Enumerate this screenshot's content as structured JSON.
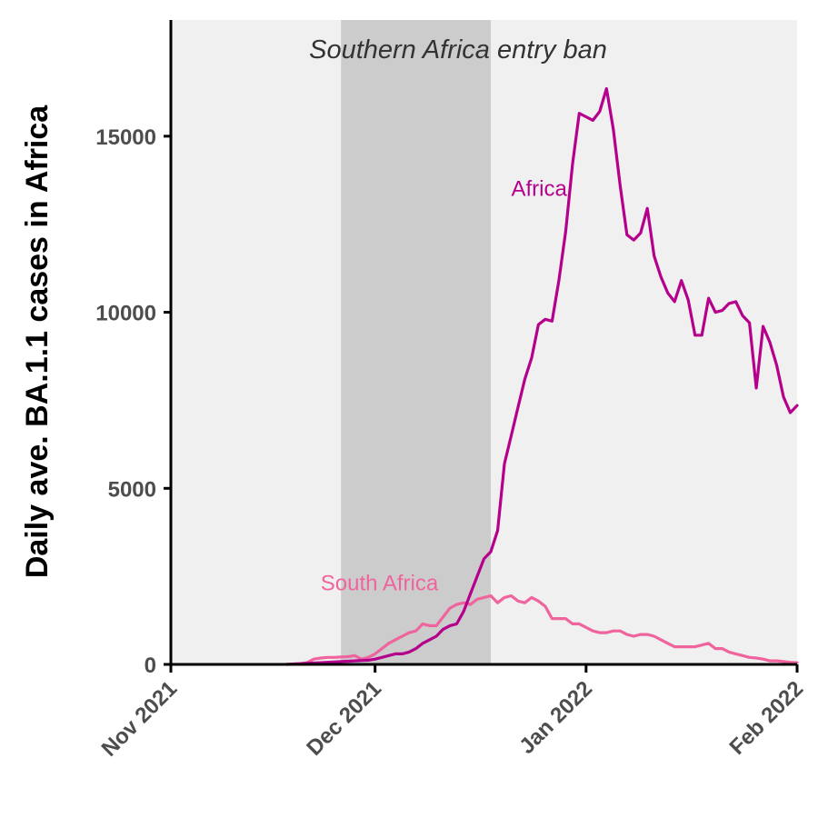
{
  "chart_data": {
    "type": "line",
    "ylabel": "Daily ave. BA.1.1 cases in Africa",
    "xlabel": "",
    "x_ticks": [
      {
        "date": "2021-11-01",
        "label": "Nov 2021"
      },
      {
        "date": "2021-12-01",
        "label": "Dec 2021"
      },
      {
        "date": "2022-01-01",
        "label": "Jan 2022"
      },
      {
        "date": "2022-02-01",
        "label": "Feb 2022"
      }
    ],
    "xlim": [
      "2021-11-01",
      "2022-02-01"
    ],
    "y_ticks": [
      0,
      5000,
      10000,
      15000
    ],
    "ylim": [
      0,
      18300
    ],
    "grid": false,
    "background_color": "#f0f0f0",
    "shaded_region": {
      "start": "2021-11-26",
      "end": "2021-12-18",
      "label": "Southern Africa entry ban",
      "color": "#cccccc"
    },
    "series": [
      {
        "name": "Africa",
        "color": "#b5008c",
        "label_at": {
          "date": "2021-12-21",
          "value": 13300
        },
        "points": [
          [
            "2021-11-18",
            0
          ],
          [
            "2021-11-20",
            20
          ],
          [
            "2021-11-22",
            40
          ],
          [
            "2021-11-24",
            60
          ],
          [
            "2021-11-26",
            80
          ],
          [
            "2021-11-28",
            100
          ],
          [
            "2021-11-30",
            120
          ],
          [
            "2021-12-01",
            150
          ],
          [
            "2021-12-02",
            200
          ],
          [
            "2021-12-03",
            250
          ],
          [
            "2021-12-04",
            300
          ],
          [
            "2021-12-05",
            300
          ],
          [
            "2021-12-06",
            350
          ],
          [
            "2021-12-07",
            450
          ],
          [
            "2021-12-08",
            600
          ],
          [
            "2021-12-09",
            700
          ],
          [
            "2021-12-10",
            800
          ],
          [
            "2021-12-11",
            1000
          ],
          [
            "2021-12-12",
            1100
          ],
          [
            "2021-12-13",
            1150
          ],
          [
            "2021-12-14",
            1500
          ],
          [
            "2021-12-15",
            2000
          ],
          [
            "2021-12-16",
            2500
          ],
          [
            "2021-12-17",
            3000
          ],
          [
            "2021-12-18",
            3200
          ],
          [
            "2021-12-19",
            3800
          ],
          [
            "2021-12-20",
            5700
          ],
          [
            "2021-12-21",
            6500
          ],
          [
            "2021-12-22",
            7300
          ],
          [
            "2021-12-23",
            8100
          ],
          [
            "2021-12-24",
            8700
          ],
          [
            "2021-12-25",
            9650
          ],
          [
            "2021-12-26",
            9800
          ],
          [
            "2021-12-27",
            9750
          ],
          [
            "2021-12-28",
            10900
          ],
          [
            "2021-12-29",
            12300
          ],
          [
            "2021-12-30",
            14200
          ],
          [
            "2021-12-31",
            15650
          ],
          [
            "2022-01-01",
            15550
          ],
          [
            "2022-01-02",
            15450
          ],
          [
            "2022-01-03",
            15700
          ],
          [
            "2022-01-04",
            16350
          ],
          [
            "2022-01-05",
            15200
          ],
          [
            "2022-01-06",
            13600
          ],
          [
            "2022-01-07",
            12200
          ],
          [
            "2022-01-08",
            12050
          ],
          [
            "2022-01-09",
            12250
          ],
          [
            "2022-01-10",
            12950
          ],
          [
            "2022-01-11",
            11600
          ],
          [
            "2022-01-12",
            11000
          ],
          [
            "2022-01-13",
            10550
          ],
          [
            "2022-01-14",
            10300
          ],
          [
            "2022-01-15",
            10900
          ],
          [
            "2022-01-16",
            10350
          ],
          [
            "2022-01-17",
            9350
          ],
          [
            "2022-01-18",
            9350
          ],
          [
            "2022-01-19",
            10400
          ],
          [
            "2022-01-20",
            10000
          ],
          [
            "2022-01-21",
            10050
          ],
          [
            "2022-01-22",
            10250
          ],
          [
            "2022-01-23",
            10300
          ],
          [
            "2022-01-24",
            9900
          ],
          [
            "2022-01-25",
            9700
          ],
          [
            "2022-01-26",
            7850
          ],
          [
            "2022-01-27",
            9600
          ],
          [
            "2022-01-28",
            9150
          ],
          [
            "2022-01-29",
            8500
          ],
          [
            "2022-01-30",
            7600
          ],
          [
            "2022-01-31",
            7150
          ],
          [
            "2022-02-01",
            7350
          ]
        ]
      },
      {
        "name": "South Africa",
        "color": "#f0649e",
        "label_at": {
          "date": "2021-11-23",
          "value": 2100
        },
        "points": [
          [
            "2021-11-18",
            0
          ],
          [
            "2021-11-20",
            20
          ],
          [
            "2021-11-21",
            50
          ],
          [
            "2021-11-22",
            150
          ],
          [
            "2021-11-23",
            180
          ],
          [
            "2021-11-24",
            200
          ],
          [
            "2021-11-25",
            200
          ],
          [
            "2021-11-26",
            210
          ],
          [
            "2021-11-27",
            220
          ],
          [
            "2021-11-28",
            250
          ],
          [
            "2021-11-29",
            150
          ],
          [
            "2021-11-30",
            200
          ],
          [
            "2021-12-01",
            300
          ],
          [
            "2021-12-02",
            450
          ],
          [
            "2021-12-03",
            600
          ],
          [
            "2021-12-04",
            700
          ],
          [
            "2021-12-05",
            800
          ],
          [
            "2021-12-06",
            900
          ],
          [
            "2021-12-07",
            950
          ],
          [
            "2021-12-08",
            1150
          ],
          [
            "2021-12-09",
            1100
          ],
          [
            "2021-12-10",
            1100
          ],
          [
            "2021-12-11",
            1350
          ],
          [
            "2021-12-12",
            1600
          ],
          [
            "2021-12-13",
            1700
          ],
          [
            "2021-12-14",
            1750
          ],
          [
            "2021-12-15",
            1700
          ],
          [
            "2021-12-16",
            1850
          ],
          [
            "2021-12-17",
            1900
          ],
          [
            "2021-12-18",
            1950
          ],
          [
            "2021-12-19",
            1750
          ],
          [
            "2021-12-20",
            1900
          ],
          [
            "2021-12-21",
            1950
          ],
          [
            "2021-12-22",
            1800
          ],
          [
            "2021-12-23",
            1750
          ],
          [
            "2021-12-24",
            1900
          ],
          [
            "2021-12-25",
            1800
          ],
          [
            "2021-12-26",
            1650
          ],
          [
            "2021-12-27",
            1300
          ],
          [
            "2021-12-28",
            1300
          ],
          [
            "2021-12-29",
            1300
          ],
          [
            "2021-12-30",
            1150
          ],
          [
            "2021-12-31",
            1150
          ],
          [
            "2022-01-01",
            1050
          ],
          [
            "2022-01-02",
            950
          ],
          [
            "2022-01-03",
            900
          ],
          [
            "2022-01-04",
            900
          ],
          [
            "2022-01-05",
            950
          ],
          [
            "2022-01-06",
            950
          ],
          [
            "2022-01-07",
            850
          ],
          [
            "2022-01-08",
            800
          ],
          [
            "2022-01-09",
            850
          ],
          [
            "2022-01-10",
            850
          ],
          [
            "2022-01-11",
            800
          ],
          [
            "2022-01-12",
            700
          ],
          [
            "2022-01-13",
            600
          ],
          [
            "2022-01-14",
            500
          ],
          [
            "2022-01-15",
            500
          ],
          [
            "2022-01-16",
            500
          ],
          [
            "2022-01-17",
            500
          ],
          [
            "2022-01-18",
            550
          ],
          [
            "2022-01-19",
            600
          ],
          [
            "2022-01-20",
            450
          ],
          [
            "2022-01-21",
            450
          ],
          [
            "2022-01-22",
            350
          ],
          [
            "2022-01-23",
            300
          ],
          [
            "2022-01-24",
            250
          ],
          [
            "2022-01-25",
            200
          ],
          [
            "2022-01-26",
            180
          ],
          [
            "2022-01-27",
            150
          ],
          [
            "2022-01-28",
            100
          ],
          [
            "2022-01-29",
            100
          ],
          [
            "2022-01-30",
            80
          ],
          [
            "2022-01-31",
            60
          ],
          [
            "2022-02-01",
            50
          ]
        ]
      }
    ]
  }
}
